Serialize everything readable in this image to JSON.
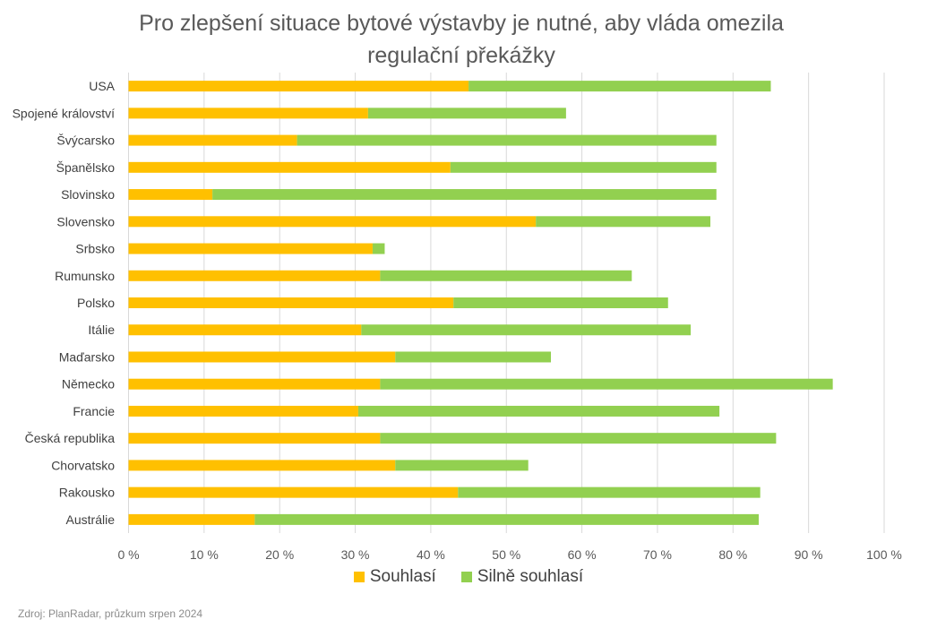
{
  "chart_data": {
    "type": "bar",
    "orientation": "horizontal",
    "stacked": true,
    "title": "Pro zlepšení situace bytové výstavby je nutné, aby vláda omezila regulační překážky",
    "title_lines": [
      "Pro zlepšení situace bytové výstavby je nutné, aby vláda omezila",
      "regulační překážky"
    ],
    "categories": [
      "USA",
      "Spojené království",
      "Švýcarsko",
      "Španělsko",
      "Slovinsko",
      "Slovensko",
      "Srbsko",
      "Rumunsko",
      "Polsko",
      "Itálie",
      "Maďarsko",
      "Německo",
      "Francie",
      "Česká republika",
      "Chorvatsko",
      "Rakousko",
      "Austrálie"
    ],
    "series": [
      {
        "name": "Souhlasí",
        "color": "#FFC000",
        "values": [
          45,
          31.7,
          22.3,
          42.6,
          11.1,
          53.9,
          32.3,
          33.3,
          43,
          30.8,
          35.3,
          33.3,
          30.4,
          33.3,
          35.3,
          43.6,
          16.7
        ]
      },
      {
        "name": "Silně souhlasí",
        "color": "#92D050",
        "values": [
          40,
          26.2,
          55.5,
          35.2,
          66.7,
          23.1,
          1.6,
          33.3,
          28.4,
          43.6,
          20.6,
          59.9,
          47.8,
          52.4,
          17.6,
          40,
          66.7
        ]
      }
    ],
    "xlim": [
      0,
      100
    ],
    "x_ticks": [
      "0 %",
      "10 %",
      "20 %",
      "30 %",
      "40 %",
      "50 %",
      "60 %",
      "70 %",
      "80 %",
      "90 %",
      "100 %"
    ],
    "grid": true,
    "legend_position": "bottom"
  },
  "source": "Zdroj: PlanRadar, průzkum srpen 2024"
}
